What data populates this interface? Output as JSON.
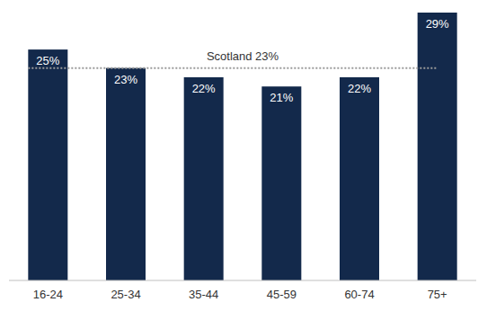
{
  "chart_data": {
    "type": "bar",
    "categories": [
      "16-24",
      "25-34",
      "35-44",
      "45-59",
      "60-74",
      "75+"
    ],
    "values": [
      25,
      23,
      22,
      21,
      22,
      29
    ],
    "value_labels": [
      "25%",
      "23%",
      "22%",
      "21%",
      "22%",
      "29%"
    ],
    "color": "#13294b",
    "ylim": [
      0,
      29
    ],
    "data_labels": true,
    "tick_labels": "x",
    "grid": false,
    "reference_line": {
      "label": "Scotland 23%",
      "value": 23
    }
  }
}
